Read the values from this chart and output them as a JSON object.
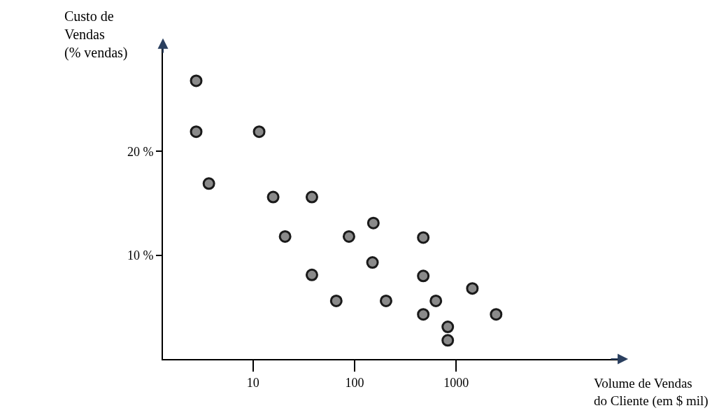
{
  "chart_data": {
    "type": "scatter",
    "xlabel": "Volume de Vendas\ndo Cliente (em $ mil)",
    "ylabel": "Custo de\nVendas\n(% vendas)",
    "log": "x",
    "x": [
      2.76,
      2.76,
      11.5,
      3.68,
      15.8,
      38,
      20.7,
      153,
      88,
      474,
      150,
      38,
      474,
      1442,
      66,
      204,
      631,
      474,
      2470,
      826,
      826
    ],
    "values": [
      26.8,
      21.9,
      21.9,
      16.9,
      15.6,
      15.6,
      11.8,
      13.1,
      11.8,
      11.7,
      9.3,
      8.1,
      8.0,
      6.8,
      5.6,
      5.6,
      5.6,
      4.3,
      4.3,
      3.1,
      1.8
    ],
    "color": "#8a8a8a",
    "marker": "circle",
    "xlim": [
      1.3,
      40000
    ],
    "ylim": [
      0,
      30
    ],
    "xticks": [
      10,
      100,
      1000
    ],
    "yticks": [
      {
        "value": 10,
        "label": "10 %"
      },
      {
        "value": 20,
        "label": "20 %"
      }
    ]
  }
}
